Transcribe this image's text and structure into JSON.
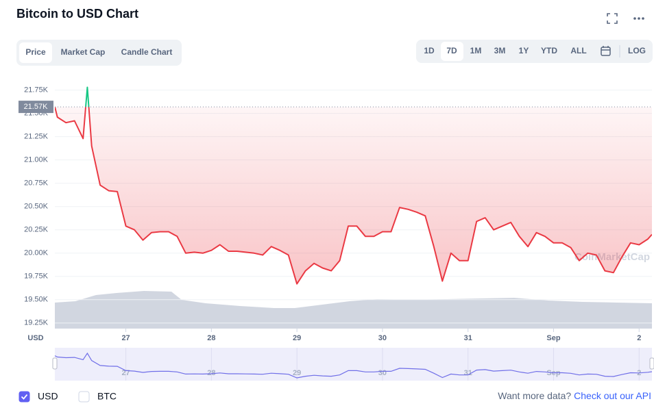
{
  "header": {
    "title": "Bitcoin to USD Chart"
  },
  "tabs": [
    "Price",
    "Market Cap",
    "Candle Chart"
  ],
  "ranges": [
    "1D",
    "7D",
    "1M",
    "3M",
    "1Y",
    "YTD",
    "ALL"
  ],
  "log_label": "LOG",
  "chart_data": {
    "type": "line",
    "y_label": "USD",
    "watermark": "CoinMarketCap",
    "reference": {
      "value": 21570,
      "label": "21.57K"
    },
    "xlim": [
      26.17,
      33.15
    ],
    "xticks": [
      27,
      28,
      29,
      30,
      31,
      {
        "value": 32,
        "label": "Sep"
      },
      {
        "value": 33,
        "label": "2"
      }
    ],
    "ylim": [
      19190,
      21850
    ],
    "yticks": [
      {
        "value": 19250,
        "label": "19.25K"
      },
      {
        "value": 19500,
        "label": "19.50K"
      },
      {
        "value": 19750,
        "label": "19.75K"
      },
      {
        "value": 20000,
        "label": "20.00K"
      },
      {
        "value": 20250,
        "label": "20.25K"
      },
      {
        "value": 20500,
        "label": "20.50K"
      },
      {
        "value": 20750,
        "label": "20.75K"
      },
      {
        "value": 21000,
        "label": "21.00K"
      },
      {
        "value": 21250,
        "label": "21.25K"
      },
      {
        "value": 21500,
        "label": "21.50K"
      },
      {
        "value": 21750,
        "label": "21.75K"
      }
    ],
    "grid": true,
    "x": [
      26.17,
      26.2,
      26.3,
      26.4,
      26.5,
      26.55,
      26.6,
      26.7,
      26.8,
      26.9,
      27.0,
      27.1,
      27.2,
      27.3,
      27.4,
      27.5,
      27.6,
      27.7,
      27.8,
      27.9,
      28.0,
      28.1,
      28.2,
      28.3,
      28.4,
      28.5,
      28.6,
      28.7,
      28.8,
      28.9,
      29.0,
      29.1,
      29.2,
      29.3,
      29.4,
      29.5,
      29.6,
      29.7,
      29.8,
      29.9,
      30.0,
      30.1,
      30.2,
      30.3,
      30.4,
      30.5,
      30.6,
      30.7,
      30.8,
      30.9,
      31.0,
      31.1,
      31.2,
      31.3,
      31.4,
      31.5,
      31.6,
      31.7,
      31.8,
      31.9,
      32.0,
      32.1,
      32.2,
      32.3,
      32.4,
      32.5,
      32.6,
      32.7,
      32.8,
      32.9,
      33.0,
      33.1,
      33.15
    ],
    "series": [
      {
        "color": "#ea3943",
        "up_color": "#16c784",
        "values": [
          21570,
          21460,
          21400,
          21420,
          21230,
          21780,
          21150,
          20730,
          20670,
          20660,
          20290,
          20250,
          20140,
          20220,
          20230,
          20230,
          20180,
          20000,
          20010,
          20000,
          20030,
          20090,
          20020,
          20020,
          20010,
          20000,
          19980,
          20070,
          20030,
          19980,
          19670,
          19810,
          19890,
          19840,
          19810,
          19920,
          20290,
          20290,
          20180,
          20180,
          20230,
          20230,
          20490,
          20470,
          20440,
          20400,
          20070,
          19700,
          20000,
          19920,
          19920,
          20340,
          20380,
          20250,
          20290,
          20330,
          20180,
          20070,
          20220,
          20180,
          20110,
          20110,
          20060,
          19920,
          20000,
          19980,
          19810,
          19790,
          19960,
          20110,
          20090,
          20150,
          20200
        ]
      }
    ],
    "legend": [
      {
        "label": "USD",
        "checked": true
      },
      {
        "label": "BTC",
        "checked": false
      }
    ]
  },
  "footer": {
    "text": "Want more data?",
    "link": "Check out our API"
  }
}
